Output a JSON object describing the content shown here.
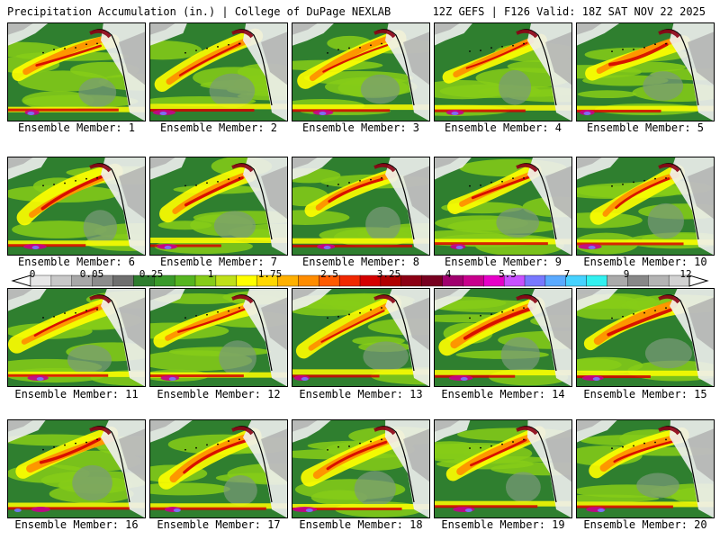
{
  "header": {
    "left_text": "Precipitation Accumulation (in.) | College of DuPage NEXLAB",
    "right_text": "12Z GEFS | F126 Valid: 18Z SAT NOV 22 2025"
  },
  "panels": [
    {
      "label": "Ensemble Member: 1"
    },
    {
      "label": "Ensemble Member: 2"
    },
    {
      "label": "Ensemble Member: 3"
    },
    {
      "label": "Ensemble Member: 4"
    },
    {
      "label": "Ensemble Member: 5"
    },
    {
      "label": "Ensemble Member: 6"
    },
    {
      "label": "Ensemble Member: 7"
    },
    {
      "label": "Ensemble Member: 8"
    },
    {
      "label": "Ensemble Member: 9"
    },
    {
      "label": "Ensemble Member: 10"
    },
    {
      "label": "Ensemble Member: 11"
    },
    {
      "label": "Ensemble Member: 12"
    },
    {
      "label": "Ensemble Member: 13"
    },
    {
      "label": "Ensemble Member: 14"
    },
    {
      "label": "Ensemble Member: 15"
    },
    {
      "label": "Ensemble Member: 16"
    },
    {
      "label": "Ensemble Member: 17"
    },
    {
      "label": "Ensemble Member: 18"
    },
    {
      "label": "Ensemble Member: 19"
    },
    {
      "label": "Ensemble Member: 20"
    }
  ],
  "colorbar": {
    "labels": [
      "0",
      "0.05",
      "0.25",
      "1",
      "1.75",
      "2.5",
      "3.25",
      "4",
      "5.5",
      "7",
      "9",
      "12"
    ],
    "colors": [
      "#e6e6e6",
      "#c8c8c8",
      "#a8a8a8",
      "#8c8c8c",
      "#6f6f6f",
      "#2e7d2e",
      "#3a9a2a",
      "#56b520",
      "#86cc18",
      "#bfe018",
      "#ffff00",
      "#ffd700",
      "#ffb000",
      "#ff8c00",
      "#ff5a00",
      "#f02800",
      "#d40000",
      "#b00000",
      "#8c0014",
      "#780020",
      "#a0006e",
      "#c8008c",
      "#e600c8",
      "#c850ff",
      "#7878ff",
      "#5aaaff",
      "#46d2ff",
      "#32f0f0",
      "#aaaaaa",
      "#888888",
      "#b4b4b4",
      "#d2d2d2"
    ]
  },
  "map_colors": {
    "ocean_base": "#2f7f2f",
    "light_green": "#86cc18",
    "yellow": "#ffff00",
    "orange": "#ff8c00",
    "red": "#d40000",
    "magenta": "#c8008c",
    "purple": "#7878ff",
    "gray": "#a8a8a8",
    "white": "#f0f0f0"
  }
}
